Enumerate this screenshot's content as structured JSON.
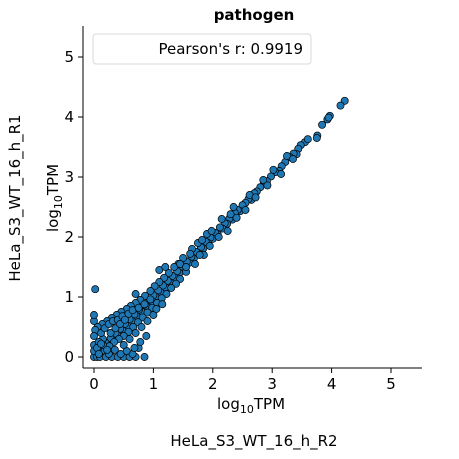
{
  "chart_data": {
    "type": "scatter",
    "title": "pathogen",
    "xlabel_prefix": "log",
    "xlabel_sub": "10",
    "xlabel_suffix": "TPM",
    "ylabel_prefix": "log",
    "ylabel_sub": "10",
    "ylabel_suffix": "TPM",
    "x_sample_label": "HeLa_S3_WT_16_h_R2",
    "y_sample_label": "HeLa_S3_WT_16_h_R1",
    "legend_text": "Pearson's r: 0.9919",
    "legend_placement": "top-left",
    "xlim": [
      -0.1,
      5.5
    ],
    "ylim": [
      -0.1,
      5.5
    ],
    "xticks": [
      0,
      1,
      2,
      3,
      4,
      5
    ],
    "yticks": [
      0,
      1,
      2,
      3,
      4,
      5
    ],
    "xtick_labels": [
      "0",
      "1",
      "2",
      "3",
      "4",
      "5"
    ],
    "ytick_labels": [
      "0",
      "1",
      "2",
      "3",
      "4",
      "5"
    ],
    "grid": false,
    "marker_color": "#1f77b4",
    "marker_edge_color": "#000000",
    "points": [
      [
        4.22,
        4.27
      ],
      [
        4.15,
        4.19
      ],
      [
        3.97,
        4.02
      ],
      [
        3.93,
        3.96
      ],
      [
        3.95,
        3.99
      ],
      [
        3.84,
        3.87
      ],
      [
        3.76,
        3.69
      ],
      [
        3.55,
        3.58
      ],
      [
        3.48,
        3.53
      ],
      [
        3.44,
        3.47
      ],
      [
        3.41,
        3.38
      ],
      [
        3.36,
        3.39
      ],
      [
        3.3,
        3.33
      ],
      [
        3.22,
        3.25
      ],
      [
        3.16,
        3.18
      ],
      [
        3.12,
        3.1
      ],
      [
        3.05,
        3.08
      ],
      [
        2.98,
        3.01
      ],
      [
        2.91,
        2.93
      ],
      [
        2.86,
        2.89
      ],
      [
        2.8,
        2.83
      ],
      [
        2.74,
        2.76
      ],
      [
        2.7,
        2.73
      ],
      [
        2.65,
        2.62
      ],
      [
        2.6,
        2.63
      ],
      [
        2.55,
        2.57
      ],
      [
        2.5,
        2.53
      ],
      [
        2.46,
        2.43
      ],
      [
        2.42,
        2.45
      ],
      [
        2.37,
        2.4
      ],
      [
        2.33,
        2.29
      ],
      [
        2.28,
        2.31
      ],
      [
        2.24,
        2.22
      ],
      [
        2.2,
        2.23
      ],
      [
        2.16,
        2.14
      ],
      [
        2.12,
        2.16
      ],
      [
        2.08,
        2.05
      ],
      [
        2.04,
        2.07
      ],
      [
        2.0,
        1.97
      ],
      [
        1.96,
        1.99
      ],
      [
        1.92,
        1.9
      ],
      [
        1.88,
        1.92
      ],
      [
        1.84,
        1.81
      ],
      [
        1.8,
        1.83
      ],
      [
        1.76,
        1.73
      ],
      [
        1.72,
        1.75
      ],
      [
        1.68,
        1.64
      ],
      [
        1.64,
        1.67
      ],
      [
        1.6,
        1.57
      ],
      [
        1.56,
        1.59
      ],
      [
        1.52,
        1.48
      ],
      [
        1.48,
        1.51
      ],
      [
        1.44,
        1.4
      ],
      [
        1.4,
        1.43
      ],
      [
        1.36,
        1.32
      ],
      [
        1.32,
        1.35
      ],
      [
        1.28,
        1.24
      ],
      [
        1.24,
        1.27
      ],
      [
        1.2,
        1.16
      ],
      [
        1.16,
        1.19
      ],
      [
        1.12,
        1.08
      ],
      [
        1.08,
        1.11
      ],
      [
        1.04,
        1.0
      ],
      [
        1.0,
        1.03
      ],
      [
        0.96,
        0.92
      ],
      [
        0.92,
        0.95
      ],
      [
        0.88,
        0.84
      ],
      [
        0.84,
        0.87
      ],
      [
        0.8,
        0.76
      ],
      [
        0.76,
        0.79
      ],
      [
        0.72,
        0.68
      ],
      [
        0.68,
        0.71
      ],
      [
        0.64,
        0.6
      ],
      [
        0.6,
        0.63
      ],
      [
        0.56,
        0.52
      ],
      [
        0.52,
        0.55
      ],
      [
        0.48,
        0.44
      ],
      [
        0.44,
        0.47
      ],
      [
        0.4,
        0.36
      ],
      [
        0.36,
        0.39
      ],
      [
        0.32,
        0.28
      ],
      [
        0.28,
        0.31
      ],
      [
        0.24,
        0.2
      ],
      [
        0.2,
        0.23
      ],
      [
        0.16,
        0.12
      ],
      [
        0.12,
        0.15
      ],
      [
        0.08,
        0.05
      ],
      [
        0.04,
        0.07
      ],
      [
        0.0,
        0.0
      ],
      [
        0.02,
        0.1
      ],
      [
        3.75,
        3.65
      ],
      [
        3.25,
        3.35
      ],
      [
        3.15,
        3.05
      ],
      [
        2.85,
        2.95
      ],
      [
        2.55,
        2.45
      ],
      [
        2.35,
        2.5
      ],
      [
        2.25,
        2.1
      ],
      [
        2.15,
        2.3
      ],
      [
        1.95,
        1.85
      ],
      [
        1.9,
        2.05
      ],
      [
        1.85,
        1.7
      ],
      [
        1.75,
        1.9
      ],
      [
        1.7,
        1.55
      ],
      [
        1.65,
        1.8
      ],
      [
        1.55,
        1.42
      ],
      [
        1.5,
        1.65
      ],
      [
        1.45,
        1.3
      ],
      [
        1.42,
        1.55
      ],
      [
        1.38,
        1.22
      ],
      [
        1.35,
        1.5
      ],
      [
        1.3,
        1.15
      ],
      [
        1.26,
        1.4
      ],
      [
        1.22,
        1.05
      ],
      [
        1.18,
        1.32
      ],
      [
        1.14,
        0.98
      ],
      [
        1.1,
        1.25
      ],
      [
        1.06,
        0.9
      ],
      [
        1.02,
        1.18
      ],
      [
        0.98,
        0.82
      ],
      [
        0.95,
        1.1
      ],
      [
        0.9,
        0.74
      ],
      [
        0.86,
        1.02
      ],
      [
        0.82,
        0.66
      ],
      [
        0.78,
        0.95
      ],
      [
        0.74,
        0.58
      ],
      [
        0.7,
        0.9
      ],
      [
        0.66,
        0.5
      ],
      [
        0.62,
        0.85
      ],
      [
        0.58,
        0.42
      ],
      [
        0.55,
        0.8
      ],
      [
        0.5,
        0.35
      ],
      [
        0.46,
        0.75
      ],
      [
        0.42,
        0.3
      ],
      [
        0.38,
        0.7
      ],
      [
        0.34,
        0.25
      ],
      [
        0.3,
        0.65
      ],
      [
        0.26,
        0.18
      ],
      [
        0.22,
        0.6
      ],
      [
        0.18,
        0.1
      ],
      [
        0.14,
        0.55
      ],
      [
        0.1,
        0.02
      ],
      [
        0.06,
        0.5
      ],
      [
        0.02,
        0.45
      ],
      [
        0.02,
        1.13
      ],
      [
        0.0,
        0.6
      ],
      [
        0.0,
        0.7
      ],
      [
        0.0,
        0.35
      ],
      [
        0.0,
        0.2
      ],
      [
        0.0,
        0.1
      ],
      [
        0.05,
        0.0
      ],
      [
        0.1,
        0.0
      ],
      [
        0.2,
        0.0
      ],
      [
        0.3,
        0.0
      ],
      [
        0.4,
        0.0
      ],
      [
        0.5,
        0.0
      ],
      [
        0.6,
        0.0
      ],
      [
        0.7,
        0.0
      ],
      [
        0.85,
        0.0
      ],
      [
        0.65,
        0.05
      ],
      [
        0.45,
        0.05
      ],
      [
        0.25,
        0.05
      ],
      [
        0.35,
        0.12
      ],
      [
        0.55,
        0.1
      ],
      [
        0.75,
        0.15
      ],
      [
        0.15,
        0.3
      ],
      [
        0.08,
        0.25
      ],
      [
        0.12,
        0.4
      ],
      [
        0.18,
        0.48
      ],
      [
        0.25,
        0.55
      ],
      [
        0.32,
        0.6
      ],
      [
        0.4,
        0.62
      ],
      [
        0.48,
        0.68
      ],
      [
        0.58,
        0.72
      ],
      [
        0.65,
        0.78
      ],
      [
        0.75,
        0.82
      ],
      [
        0.85,
        0.88
      ],
      [
        0.95,
        0.96
      ],
      [
        0.5,
        0.2
      ],
      [
        0.6,
        0.3
      ],
      [
        0.7,
        0.4
      ],
      [
        0.8,
        0.5
      ],
      [
        0.9,
        0.6
      ],
      [
        1.0,
        0.7
      ],
      [
        1.05,
        0.8
      ],
      [
        1.15,
        0.88
      ],
      [
        0.88,
        0.35
      ],
      [
        0.78,
        0.25
      ],
      [
        0.68,
        0.15
      ],
      [
        0.15,
        0.2
      ],
      [
        0.22,
        0.12
      ],
      [
        0.28,
        0.4
      ],
      [
        0.36,
        0.48
      ],
      [
        0.44,
        0.55
      ],
      [
        0.52,
        0.62
      ],
      [
        0.05,
        0.15
      ],
      [
        0.08,
        0.05
      ],
      [
        0.12,
        0.22
      ],
      [
        1.45,
        1.55
      ],
      [
        1.55,
        1.5
      ],
      [
        1.62,
        1.72
      ],
      [
        1.78,
        1.7
      ],
      [
        1.82,
        1.95
      ],
      [
        1.98,
        2.1
      ],
      [
        2.1,
        2.0
      ],
      [
        2.3,
        2.38
      ],
      [
        2.4,
        2.32
      ],
      [
        2.62,
        2.7
      ],
      [
        2.72,
        2.66
      ],
      [
        2.92,
        2.86
      ],
      [
        3.02,
        3.12
      ],
      [
        3.35,
        3.3
      ],
      [
        3.6,
        3.63
      ],
      [
        1.1,
        1.45
      ],
      [
        1.2,
        1.5
      ],
      [
        0.7,
        1.05
      ]
    ]
  }
}
